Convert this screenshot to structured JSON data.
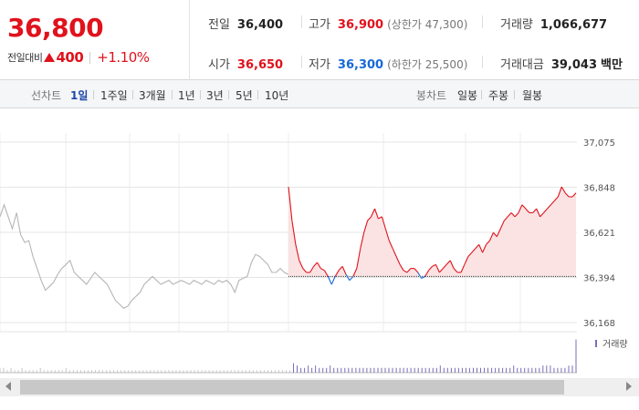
{
  "header": {
    "price": "36,800",
    "change_label": "전일대비",
    "change_value": "400",
    "change_rate": "+1.10%",
    "stats": {
      "prev_close": {
        "label": "전일",
        "value": "36,400"
      },
      "high": {
        "label": "고가",
        "value": "36,900",
        "sub": "(상한가 47,300)"
      },
      "volume": {
        "label": "거래량",
        "value": "1,066,677"
      },
      "open": {
        "label": "시가",
        "value": "36,650"
      },
      "low": {
        "label": "저가",
        "value": "36,300",
        "sub": "(하한가 25,500)"
      },
      "amount": {
        "label": "거래대금",
        "value": "39,043",
        "unit": "백만"
      }
    }
  },
  "toolbar": {
    "line_chart_label": "선차트",
    "line_periods": [
      "1일",
      "1주일",
      "3개월",
      "1년",
      "3년",
      "5년",
      "10년"
    ],
    "active_period": "1일",
    "candle_chart_label": "봉차트",
    "candle_periods": [
      "일봉",
      "주봉",
      "월봉"
    ]
  },
  "colors": {
    "up": "#e0121c",
    "down": "#1769d6",
    "prev_day": "#b5b5b5",
    "up_fill": "#fbe3e3",
    "volume": "#7a6fb8"
  },
  "icons": {
    "change_direction": "up-triangle-icon",
    "scroll_left": "scroll-left-arrow-icon",
    "scroll_right": "scroll-right-arrow-icon"
  },
  "chart_data": {
    "type": "line",
    "y_ticks": [
      "37,075",
      "36,848",
      "36,621",
      "36,394",
      "36,168"
    ],
    "ylim": [
      36168,
      37075
    ],
    "baseline": 36400,
    "grid": true,
    "legend": "거래량",
    "series": [
      {
        "role": "previous-day",
        "values": [
          36700,
          36760,
          36700,
          36640,
          36720,
          36610,
          36570,
          36580,
          36500,
          36440,
          36380,
          36330,
          36350,
          36370,
          36410,
          36440,
          36460,
          36480,
          36420,
          36400,
          36380,
          36360,
          36390,
          36420,
          36400,
          36380,
          36360,
          36320,
          36280,
          36260,
          36240,
          36250,
          36280,
          36300,
          36320,
          36360,
          36380,
          36400,
          36380,
          36360,
          36370,
          36380,
          36360,
          36370,
          36380,
          36370,
          36360,
          36380,
          36370,
          36360,
          36380,
          36370,
          36360,
          36380,
          36370,
          36380,
          36360,
          36320,
          36380,
          36390,
          36400,
          36470,
          36510,
          36500,
          36480,
          36460,
          36420,
          36420,
          36440,
          36420,
          36410
        ]
      },
      {
        "role": "today",
        "values": [
          36850,
          36680,
          36560,
          36480,
          36440,
          36420,
          36420,
          36450,
          36470,
          36440,
          36430,
          36400,
          36360,
          36400,
          36430,
          36450,
          36410,
          36380,
          36400,
          36440,
          36540,
          36620,
          36680,
          36700,
          36740,
          36690,
          36700,
          36640,
          36580,
          36540,
          36500,
          36460,
          36430,
          36420,
          36440,
          36440,
          36420,
          36390,
          36400,
          36430,
          36450,
          36460,
          36420,
          36440,
          36460,
          36480,
          36440,
          36420,
          36420,
          36460,
          36500,
          36520,
          36540,
          36560,
          36520,
          36560,
          36580,
          36620,
          36600,
          36640,
          36680,
          36700,
          36720,
          36700,
          36720,
          36760,
          36740,
          36720,
          36720,
          36740,
          36700,
          36720,
          36740,
          36760,
          36780,
          36800,
          36850,
          36820,
          36800,
          36800,
          36820
        ]
      }
    ],
    "volume": [
      2,
      2,
      1,
      2,
      1,
      1,
      2,
      1,
      1,
      1,
      1,
      2,
      1,
      1,
      1,
      1,
      1,
      1,
      2,
      1,
      1,
      1,
      1,
      1,
      1,
      1,
      1,
      1,
      1,
      1,
      1,
      1,
      1,
      1,
      1,
      1,
      1,
      1,
      1,
      1,
      1,
      1,
      1,
      1,
      1,
      1,
      1,
      1,
      1,
      1,
      1,
      1,
      1,
      1,
      1,
      1,
      1,
      1,
      1,
      1,
      1,
      1,
      1,
      1,
      1,
      1,
      1,
      1,
      1,
      1,
      1,
      1,
      1,
      1,
      1,
      1,
      1,
      1,
      1,
      1,
      4,
      3,
      2,
      2,
      3,
      2,
      3,
      2,
      2,
      2,
      3,
      2,
      2,
      2,
      2,
      2,
      2,
      2,
      2,
      2,
      2,
      2,
      2,
      2,
      2,
      2,
      2,
      2,
      2,
      2,
      2,
      2,
      2,
      2,
      2,
      2,
      2,
      2,
      2,
      2,
      3,
      2,
      2,
      2,
      2,
      2,
      2,
      2,
      2,
      2,
      2,
      2,
      2,
      2,
      2,
      2,
      2,
      2,
      2,
      2,
      3,
      2,
      2,
      2,
      2,
      2,
      2,
      2,
      3,
      3,
      3,
      2,
      2,
      2,
      2,
      3,
      3,
      14
    ]
  }
}
